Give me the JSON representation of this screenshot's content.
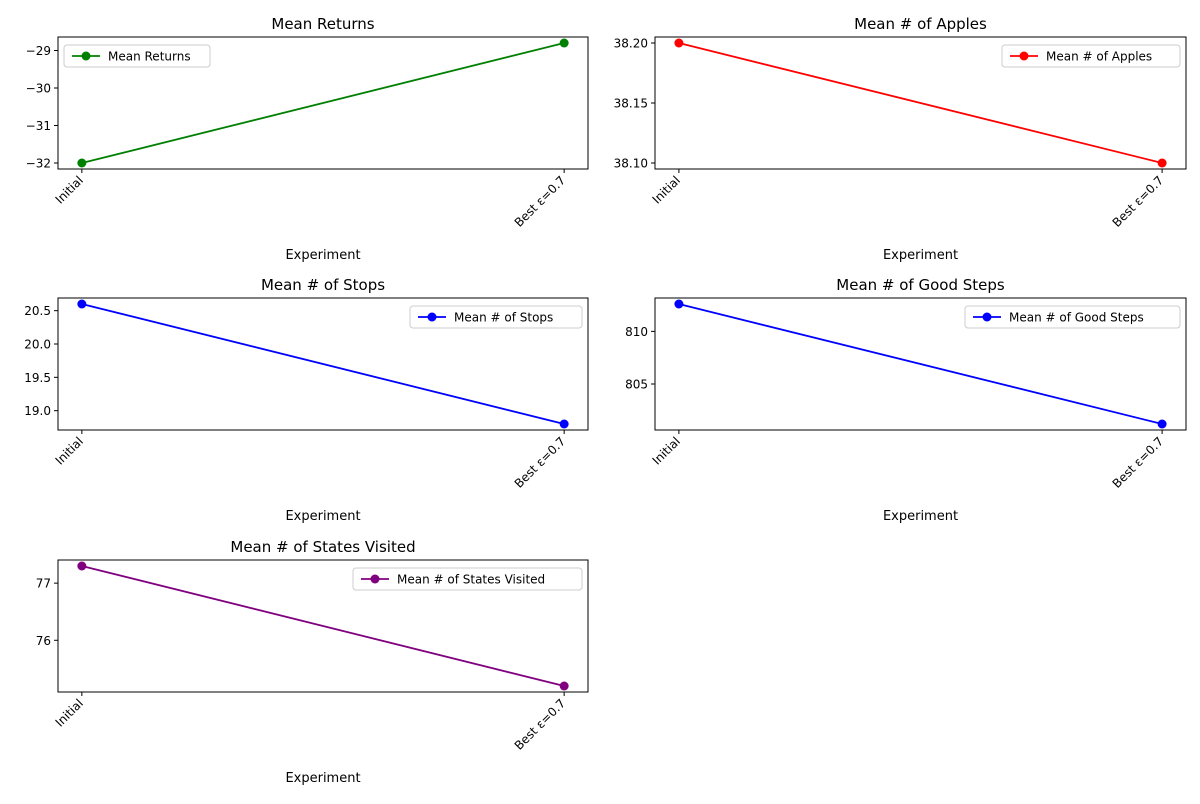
{
  "chart_data": [
    {
      "type": "line",
      "title": "Mean Returns",
      "xlabel": "Experiment",
      "ylabel": "",
      "categories": [
        "Initial",
        "Best ε=0.7"
      ],
      "series": [
        {
          "name": "Mean Returns",
          "values": [
            -32.0,
            -28.8
          ],
          "color": "#008000"
        }
      ],
      "ylim": [
        -32.16,
        -28.64
      ],
      "yticks": [
        -32,
        -31,
        -30,
        -29
      ],
      "ytick_labels": [
        "−32",
        "−31",
        "−30",
        "−29"
      ],
      "legend": "top-left",
      "grid": false
    },
    {
      "type": "line",
      "title": "Mean # of Apples",
      "xlabel": "Experiment",
      "ylabel": "",
      "categories": [
        "Initial",
        "Best ε=0.7"
      ],
      "series": [
        {
          "name": "Mean # of Apples",
          "values": [
            38.2,
            38.1
          ],
          "color": "#ff0000"
        }
      ],
      "ylim": [
        38.095,
        38.205
      ],
      "yticks": [
        38.1,
        38.15,
        38.2
      ],
      "ytick_labels": [
        "38.10",
        "38.15",
        "38.20"
      ],
      "legend": "top-right",
      "grid": false
    },
    {
      "type": "line",
      "title": "Mean # of Stops",
      "xlabel": "Experiment",
      "ylabel": "",
      "categories": [
        "Initial",
        "Best ε=0.7"
      ],
      "series": [
        {
          "name": "Mean # of Stops",
          "values": [
            20.6,
            18.8
          ],
          "color": "#0000ff"
        }
      ],
      "ylim": [
        18.71,
        20.69
      ],
      "yticks": [
        19.0,
        19.5,
        20.0,
        20.5
      ],
      "ytick_labels": [
        "19.0",
        "19.5",
        "20.0",
        "20.5"
      ],
      "legend": "top-right",
      "grid": false
    },
    {
      "type": "line",
      "title": "Mean # of Good Steps",
      "xlabel": "Experiment",
      "ylabel": "",
      "categories": [
        "Initial",
        "Best ε=0.7"
      ],
      "series": [
        {
          "name": "Mean # of Good Steps",
          "values": [
            812.6,
            801.2
          ],
          "color": "#0000ff"
        }
      ],
      "ylim": [
        800.63,
        813.17
      ],
      "yticks": [
        805,
        810
      ],
      "ytick_labels": [
        "805",
        "810"
      ],
      "legend": "top-right",
      "grid": false
    },
    {
      "type": "line",
      "title": "Mean # of States Visited",
      "xlabel": "Experiment",
      "ylabel": "",
      "categories": [
        "Initial",
        "Best ε=0.7"
      ],
      "series": [
        {
          "name": "Mean # of States Visited",
          "values": [
            77.3,
            75.2
          ],
          "color": "#800080"
        }
      ],
      "ylim": [
        75.095,
        77.405
      ],
      "yticks": [
        76,
        77
      ],
      "ytick_labels": [
        "76",
        "77"
      ],
      "legend": "top-right",
      "grid": false
    }
  ]
}
